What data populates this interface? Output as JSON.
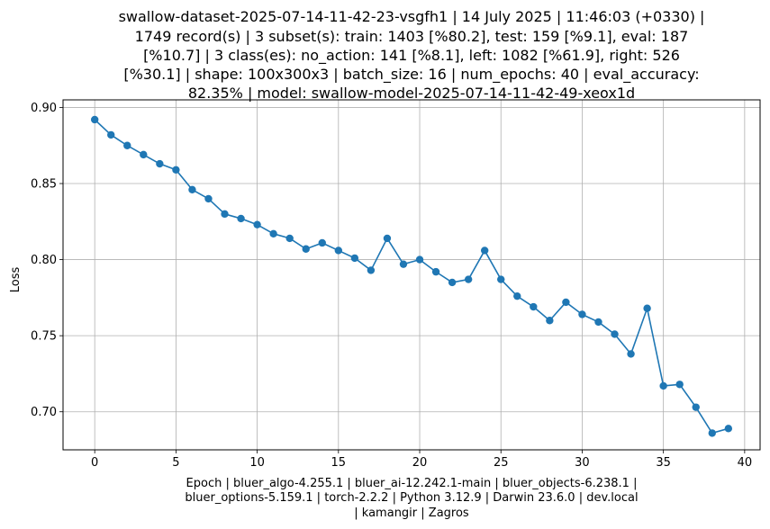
{
  "chart_data": {
    "type": "line",
    "title_lines": [
      "swallow-dataset-2025-07-14-11-42-23-vsgfh1 | 14 July 2025 | 11:46:03 (+0330) |",
      "1749 record(s) | 3 subset(s): train: 1403 [%80.2], test: 159 [%9.1], eval: 187",
      "[%10.7] | 3 class(es): no_action: 141 [%8.1], left: 1082 [%61.9], right: 526",
      "[%30.1] | shape: 100x300x3 | batch_size: 16 | num_epochs: 40 | eval_accuracy:",
      "82.35% | model: swallow-model-2025-07-14-11-42-49-xeox1d"
    ],
    "xlabel_lines": [
      "Epoch | bluer_algo-4.255.1 | bluer_ai-12.242.1-main | bluer_objects-6.238.1 |",
      "bluer_options-5.159.1 | torch-2.2.2 | Python 3.12.9 | Darwin 23.6.0 | dev.local",
      "| kamangir | Zagros"
    ],
    "ylabel": "Loss",
    "xlim": [
      -1.95,
      40.95
    ],
    "ylim": [
      0.675,
      0.905
    ],
    "xticks": [
      0,
      5,
      10,
      15,
      20,
      25,
      30,
      35,
      40
    ],
    "xtick_labels": [
      "0",
      "5",
      "10",
      "15",
      "20",
      "25",
      "30",
      "35",
      "40"
    ],
    "yticks": [
      0.7,
      0.75,
      0.8,
      0.85,
      0.9
    ],
    "ytick_labels": [
      "0.70",
      "0.75",
      "0.80",
      "0.85",
      "0.90"
    ],
    "grid": true,
    "color": "#1f77b4",
    "x": [
      0,
      1,
      2,
      3,
      4,
      5,
      6,
      7,
      8,
      9,
      10,
      11,
      12,
      13,
      14,
      15,
      16,
      17,
      18,
      19,
      20,
      21,
      22,
      23,
      24,
      25,
      26,
      27,
      28,
      29,
      30,
      31,
      32,
      33,
      34,
      35,
      36,
      37,
      38,
      39
    ],
    "y": [
      0.892,
      0.882,
      0.875,
      0.869,
      0.863,
      0.859,
      0.846,
      0.84,
      0.83,
      0.827,
      0.823,
      0.817,
      0.814,
      0.807,
      0.811,
      0.806,
      0.801,
      0.793,
      0.814,
      0.797,
      0.8,
      0.792,
      0.785,
      0.787,
      0.806,
      0.787,
      0.776,
      0.769,
      0.76,
      0.772,
      0.764,
      0.759,
      0.751,
      0.738,
      0.768,
      0.717,
      0.718,
      0.703,
      0.686,
      0.689
    ]
  }
}
